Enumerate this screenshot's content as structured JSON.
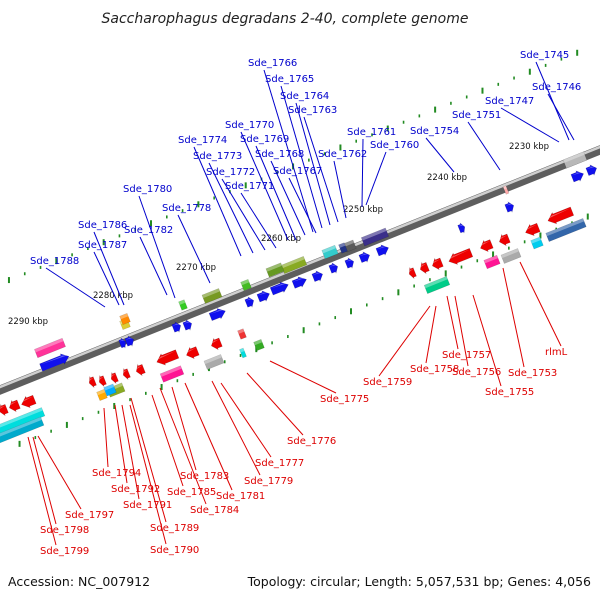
{
  "title": "Saccharophagus degradans 2-40, complete genome",
  "footer": {
    "accession": "Accession: NC_007912",
    "summary": "Topology: circular; Length: 5,057,531 bp; Genes: 4,056"
  },
  "colors": {
    "forward_label": "#0000cc",
    "reverse_label": "#dd0000",
    "backbone": "#888888",
    "tick": "#228b22"
  },
  "kbp_marks": [
    "2230 kbp",
    "2240 kbp",
    "2250 kbp",
    "2260 kbp",
    "2270 kbp",
    "2280 kbp",
    "2290 kbp"
  ],
  "forward_genes": [
    "Sde_1745",
    "Sde_1746",
    "Sde_1747",
    "Sde_1751",
    "Sde_1754",
    "Sde_1760",
    "Sde_1761",
    "Sde_1762",
    "Sde_1763",
    "Sde_1764",
    "Sde_1765",
    "Sde_1766",
    "Sde_1767",
    "Sde_1768",
    "Sde_1769",
    "Sde_1770",
    "Sde_1771",
    "Sde_1772",
    "Sde_1773",
    "Sde_1774",
    "Sde_1778",
    "Sde_1780",
    "Sde_1782",
    "Sde_1786",
    "Sde_1787",
    "Sde_1788"
  ],
  "reverse_genes": [
    "rlmL",
    "Sde_1753",
    "Sde_1755",
    "Sde_1756",
    "Sde_1757",
    "Sde_1758",
    "Sde_1759",
    "Sde_1775",
    "Sde_1776",
    "Sde_1777",
    "Sde_1779",
    "Sde_1781",
    "Sde_1783",
    "Sde_1784",
    "Sde_1785",
    "Sde_1789",
    "Sde_1790",
    "Sde_1791",
    "Sde_1792",
    "Sde_1794",
    "Sde_1797",
    "Sde_1798",
    "Sde_1799"
  ]
}
